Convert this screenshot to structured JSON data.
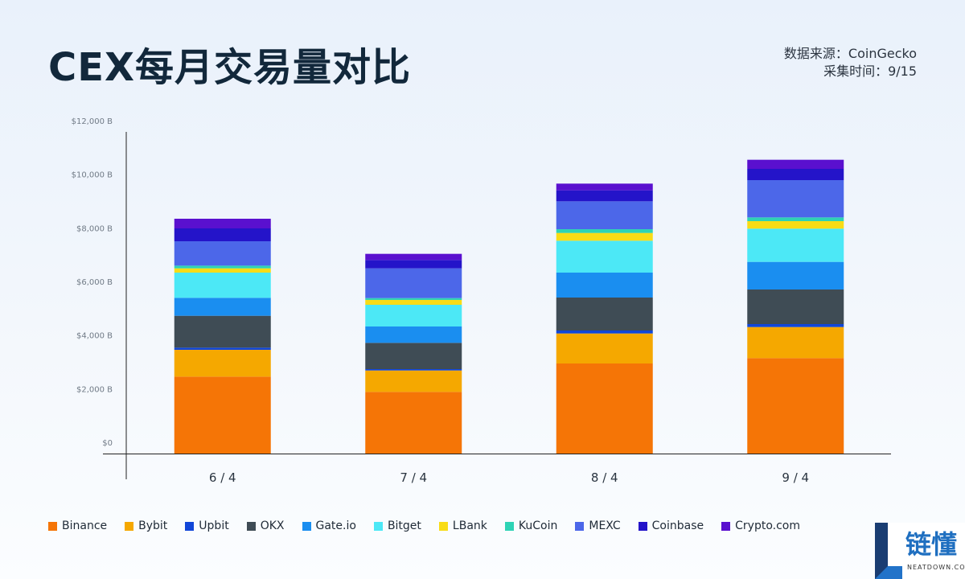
{
  "title": "CEX每月交易量对比",
  "source": {
    "line1": "数据来源：CoinGecko",
    "line2": "采集时间：9/15"
  },
  "chart_data": {
    "type": "bar",
    "stacked": true,
    "categories": [
      "6 / 4",
      "7 / 4",
      "8 / 4",
      "9 / 4"
    ],
    "y_ticks": [
      "$0",
      "$2,000 B",
      "$4,000 B",
      "$6,000 B",
      "$8,000 B",
      "$10,000 B",
      "$12,000 B"
    ],
    "ylim": [
      0,
      12000
    ],
    "legend_position": "bottom",
    "series": [
      {
        "name": "Binance",
        "color": "#f57506",
        "values": [
          2870,
          2300,
          3360,
          3560
        ]
      },
      {
        "name": "Bybit",
        "color": "#f5a800",
        "values": [
          1000,
          800,
          1120,
          1160
        ]
      },
      {
        "name": "Upbit",
        "color": "#1146d8",
        "values": [
          80,
          50,
          110,
          110
        ]
      },
      {
        "name": "OKX",
        "color": "#3f4c55",
        "values": [
          1190,
          980,
          1230,
          1290
        ]
      },
      {
        "name": "Gate.io",
        "color": "#1a8ef0",
        "values": [
          670,
          610,
          930,
          1030
        ]
      },
      {
        "name": "Bitget",
        "color": "#4ce8f6",
        "values": [
          940,
          810,
          1190,
          1240
        ]
      },
      {
        "name": "LBank",
        "color": "#f8dc16",
        "values": [
          160,
          180,
          290,
          280
        ]
      },
      {
        "name": "KuCoin",
        "color": "#2ed3b5",
        "values": [
          100,
          70,
          140,
          140
        ]
      },
      {
        "name": "MEXC",
        "color": "#4c67e9",
        "values": [
          910,
          1110,
          1040,
          1390
        ]
      },
      {
        "name": "Coinbase",
        "color": "#2414c9",
        "values": [
          480,
          310,
          410,
          420
        ]
      },
      {
        "name": "Crypto.com",
        "color": "#5a10cf",
        "values": [
          360,
          230,
          250,
          340
        ]
      }
    ]
  },
  "logo": {
    "text": "链懂",
    "subtext": "NEATDOWN.COM"
  }
}
